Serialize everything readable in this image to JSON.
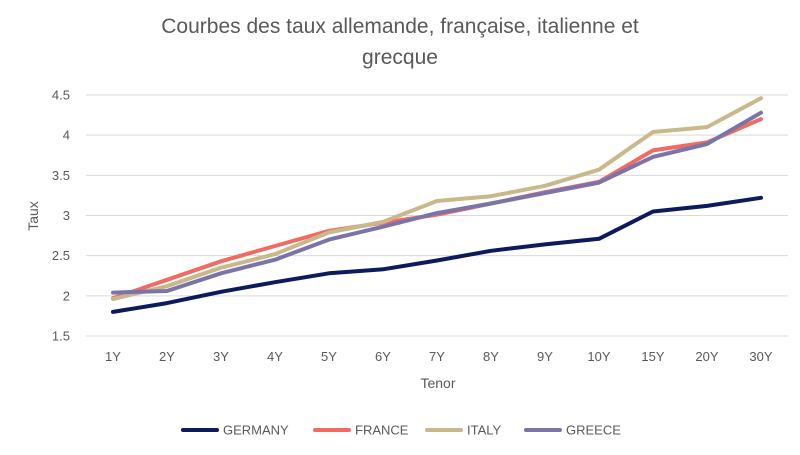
{
  "chart_data": {
    "type": "line",
    "title_lines": [
      "Courbes des taux allemande, française, italienne et",
      "grecque"
    ],
    "xlabel": "Tenor",
    "ylabel": "Taux",
    "categories": [
      "1Y",
      "2Y",
      "3Y",
      "4Y",
      "5Y",
      "6Y",
      "7Y",
      "8Y",
      "9Y",
      "10Y",
      "15Y",
      "20Y",
      "30Y"
    ],
    "ylim": [
      1.5,
      4.5
    ],
    "yticks": [
      "1.5",
      "2",
      "2.5",
      "3",
      "3.5",
      "4",
      "4.5"
    ],
    "grid": true,
    "legend_position": "bottom",
    "series": [
      {
        "name": "GERMANY",
        "color": "#0d1a5c",
        "values": [
          1.8,
          1.91,
          2.05,
          2.17,
          2.28,
          2.33,
          2.44,
          2.56,
          2.64,
          2.71,
          3.05,
          3.12,
          3.22
        ]
      },
      {
        "name": "FRANCE",
        "color": "#f26b63",
        "values": [
          1.97,
          2.2,
          2.43,
          2.62,
          2.81,
          2.91,
          3.01,
          3.15,
          3.29,
          3.42,
          3.81,
          3.91,
          4.2
        ]
      },
      {
        "name": "ITALY",
        "color": "#c9b88a",
        "values": [
          1.96,
          2.12,
          2.35,
          2.52,
          2.79,
          2.92,
          3.18,
          3.24,
          3.37,
          3.57,
          4.04,
          4.1,
          4.46
        ]
      },
      {
        "name": "GREECE",
        "color": "#7b74a8",
        "values": [
          2.04,
          2.06,
          2.28,
          2.45,
          2.7,
          2.86,
          3.03,
          3.15,
          3.28,
          3.41,
          3.73,
          3.89,
          4.28
        ]
      }
    ]
  }
}
